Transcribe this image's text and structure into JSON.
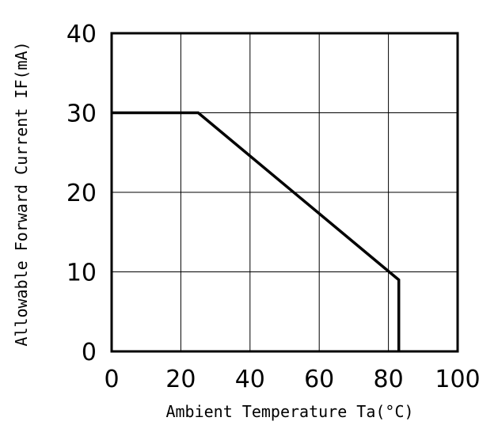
{
  "chart_data": {
    "type": "line",
    "title": "",
    "xlabel": "Ambient Temperature Ta(°C)",
    "ylabel": "Allowable Forward Current IF(mA)",
    "xlim": [
      0,
      100
    ],
    "ylim": [
      0,
      40
    ],
    "x_ticks": [
      0,
      20,
      40,
      60,
      80,
      100
    ],
    "y_ticks": [
      0,
      10,
      20,
      30,
      40
    ],
    "x_tick_labels": [
      "0",
      "20",
      "40",
      "60",
      "80",
      "100"
    ],
    "y_tick_labels": [
      "0",
      "10",
      "20",
      "30",
      "40"
    ],
    "grid": true,
    "legend": "none",
    "line_color": "#000000",
    "series": [
      {
        "x": [
          0,
          25,
          83,
          83
        ],
        "y": [
          30,
          30,
          9,
          0
        ]
      }
    ]
  }
}
